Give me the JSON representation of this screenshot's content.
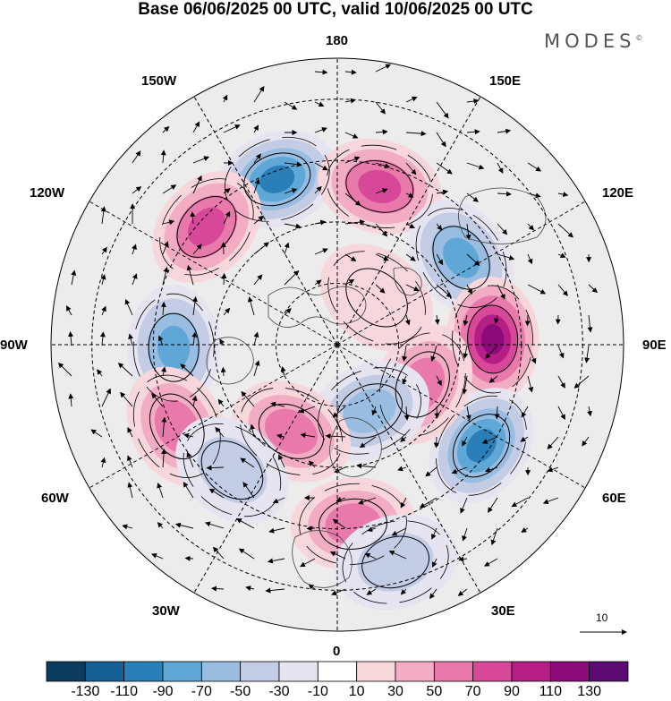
{
  "title": "Base 06/06/2025 00 UTC, valid 10/06/2025 00 UTC",
  "brand": "MODES",
  "brand_mark": "©",
  "longitude_labels": {
    "n180": "180",
    "e150": "150E",
    "e120": "120E",
    "e90": "90E",
    "e60": "60E",
    "e30": "30E",
    "z0": "0",
    "w30": "30W",
    "w60": "60W",
    "w90": "90W",
    "w120": "120W",
    "w150": "150W"
  },
  "vector_scale": {
    "label": "10"
  },
  "colorbar": {
    "colors": [
      "#0b3c5f",
      "#165f94",
      "#2a7fb8",
      "#5ea7d6",
      "#99bde0",
      "#c3cce5",
      "#e6e4f0",
      "#ffffff",
      "#f7d6dc",
      "#f2adc4",
      "#e979ab",
      "#d84898",
      "#b61e85",
      "#8d0a7a",
      "#5b0c72"
    ],
    "ticks": [
      "-130",
      "-110",
      "-90",
      "-70",
      "-50",
      "-30",
      "-10",
      "10",
      "30",
      "50",
      "70",
      "90",
      "110",
      "130"
    ]
  },
  "anomalies": [
    {
      "lon": -160,
      "lat": 47,
      "value": -95
    },
    {
      "lon": 165,
      "lat": 50,
      "value": 75
    },
    {
      "lon": -132,
      "lat": 47,
      "value": 85
    },
    {
      "lon": 125,
      "lat": 53,
      "value": -85
    },
    {
      "lon": 92,
      "lat": 52,
      "value": 110
    },
    {
      "lon": -89,
      "lat": 50,
      "value": -70
    },
    {
      "lon": -63,
      "lat": 46,
      "value": 65
    },
    {
      "lon": 55,
      "lat": 47,
      "value": -100
    },
    {
      "lon": 65,
      "lat": 67,
      "value": 60
    },
    {
      "lon": 26,
      "lat": 72,
      "value": -55
    },
    {
      "lon": -28,
      "lat": 66,
      "value": 55
    },
    {
      "lon": 5,
      "lat": 46,
      "value": 55
    },
    {
      "lon": -40,
      "lat": 50,
      "value": -40
    },
    {
      "lon": 15,
      "lat": 35,
      "value": -30
    },
    {
      "lon": 140,
      "lat": 75,
      "value": 25
    }
  ]
}
